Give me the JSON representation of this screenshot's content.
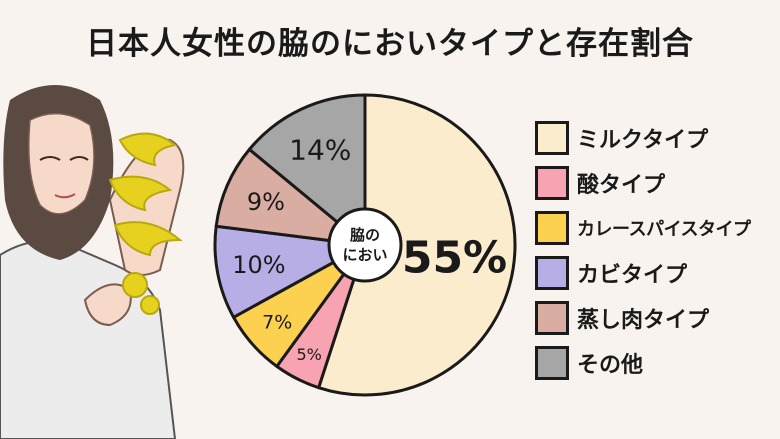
{
  "title": "日本人女性の脇のにおいタイプと存在割合",
  "chart_data": {
    "type": "pie",
    "title": "日本人女性の脇のにおいタイプと存在割合",
    "center_label": [
      "脇の",
      "におい"
    ],
    "slices": [
      {
        "label": "ミルクタイプ",
        "value": 55,
        "display": "55%",
        "color": "#fbeccd"
      },
      {
        "label": "酸タイプ",
        "value": 5,
        "display": "5%",
        "color": "#f7a3b1"
      },
      {
        "label": "カレースパイスタイプ",
        "value": 7,
        "display": "7%",
        "color": "#fcd150"
      },
      {
        "label": "カビタイプ",
        "value": 10,
        "display": "10%",
        "color": "#b7aee6"
      },
      {
        "label": "蒸し肉タイプ",
        "value": 9,
        "display": "9%",
        "color": "#d9ada1"
      },
      {
        "label": "その他",
        "value": 14,
        "display": "14%",
        "color": "#a6a6a6"
      }
    ],
    "legend_position": "right"
  },
  "legend": [
    {
      "label": "ミルクタイプ",
      "color": "#fbeccd"
    },
    {
      "label": "酸タイプ",
      "color": "#f7a3b1"
    },
    {
      "label": "カレースパイスタイプ",
      "color": "#fcd150"
    },
    {
      "label": "カビタイプ",
      "color": "#b7aee6"
    },
    {
      "label": "蒸し肉タイプ",
      "color": "#d9ada1"
    },
    {
      "label": "その他",
      "color": "#a6a6a6"
    }
  ],
  "illustration": {
    "subject": "woman raising arm with yellow odor effect",
    "colors": {
      "hair": "#5a4a42",
      "skin": "#f6d9c8",
      "shirt": "#ececec",
      "odor": "#e6d21e"
    }
  }
}
